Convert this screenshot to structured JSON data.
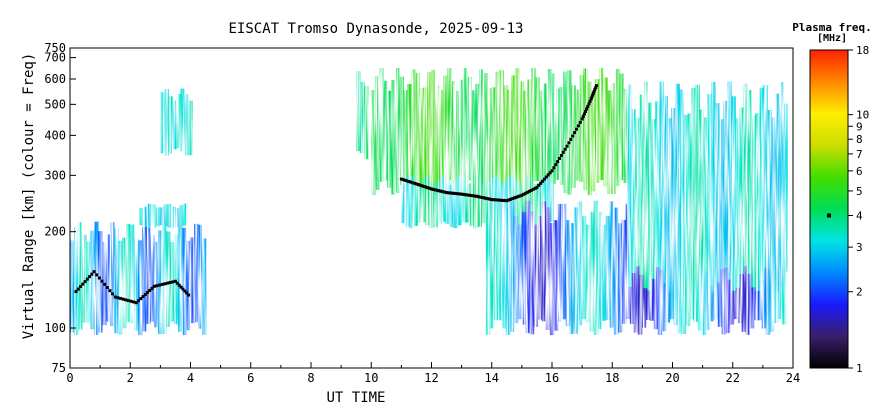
{
  "chart_data": {
    "type": "heatmap",
    "title": "EISCAT Tromso Dynasonde, 2025-09-13",
    "xlabel": "UT TIME",
    "ylabel": "Virtual Range [km] (colour = Freq)",
    "xlim": [
      0,
      24
    ],
    "ylim": [
      75,
      750
    ],
    "y_scale": "log",
    "x_ticks": [
      0,
      2,
      4,
      6,
      8,
      10,
      12,
      14,
      16,
      18,
      20,
      22,
      24
    ],
    "y_ticks": [
      75,
      100,
      200,
      300,
      400,
      500,
      600,
      700,
      750
    ],
    "y_tick_labels": [
      "75",
      "100",
      "200",
      "300",
      "400",
      "500",
      "600",
      "700",
      "750"
    ],
    "colorbar": {
      "title": "Plasma freq.",
      "unit": "[MHz]",
      "scale": "log",
      "range": [
        1,
        18
      ],
      "ticks": [
        1,
        2,
        3,
        4,
        5,
        6,
        7,
        8,
        9,
        10,
        18
      ],
      "tick_labels": [
        "1",
        "2",
        "3",
        "4",
        "5",
        "6",
        "7",
        "8",
        "9",
        "10",
        "18"
      ],
      "marker_value": 4,
      "colors": [
        "#000000",
        "#3a1f6b",
        "#1a1aff",
        "#0088ff",
        "#00e5e5",
        "#00dd55",
        "#44dd00",
        "#ccdd00",
        "#ffee00",
        "#ff8800",
        "#ff2200"
      ]
    },
    "grid": false,
    "echo_regions": [
      {
        "t0": 0.0,
        "t1": 4.4,
        "h0": 95,
        "h1": 215,
        "f_low": 2.0,
        "f_high": 3.5
      },
      {
        "t0": 2.3,
        "t1": 3.8,
        "h0": 205,
        "h1": 245,
        "f_low": 2.8,
        "f_high": 3.3
      },
      {
        "t0": 3.0,
        "t1": 4.0,
        "h0": 345,
        "h1": 560,
        "f_low": 3.0,
        "f_high": 3.5
      },
      {
        "t0": 9.5,
        "t1": 9.8,
        "h0": 330,
        "h1": 640,
        "f_low": 3.5,
        "f_high": 4.2
      },
      {
        "t0": 10.0,
        "t1": 18.5,
        "h0": 260,
        "h1": 650,
        "f_low": 4.2,
        "f_high": 5.5
      },
      {
        "t0": 11.0,
        "t1": 16.0,
        "h0": 205,
        "h1": 300,
        "f_low": 3.0,
        "f_high": 4.0
      },
      {
        "t0": 13.8,
        "t1": 23.7,
        "h0": 95,
        "h1": 250,
        "f_low": 1.6,
        "f_high": 3.4
      },
      {
        "t0": 18.5,
        "t1": 23.7,
        "h0": 130,
        "h1": 590,
        "f_low": 2.8,
        "f_high": 3.6
      }
    ],
    "black_traces": [
      {
        "name": "",
        "points": [
          [
            11.0,
            292
          ],
          [
            11.5,
            282
          ],
          [
            12.0,
            272
          ],
          [
            12.5,
            265
          ],
          [
            13.0,
            262
          ],
          [
            13.5,
            258
          ],
          [
            14.0,
            252
          ],
          [
            14.5,
            250
          ],
          [
            15.0,
            260
          ],
          [
            15.5,
            275
          ],
          [
            16.0,
            310
          ],
          [
            16.5,
            370
          ],
          [
            17.0,
            450
          ],
          [
            17.3,
            520
          ],
          [
            17.5,
            580
          ]
        ]
      },
      {
        "name": "",
        "points": [
          [
            0.2,
            130
          ],
          [
            0.8,
            150
          ],
          [
            1.5,
            125
          ],
          [
            2.2,
            120
          ],
          [
            2.8,
            135
          ],
          [
            3.5,
            140
          ],
          [
            4.0,
            125
          ]
        ]
      }
    ]
  }
}
